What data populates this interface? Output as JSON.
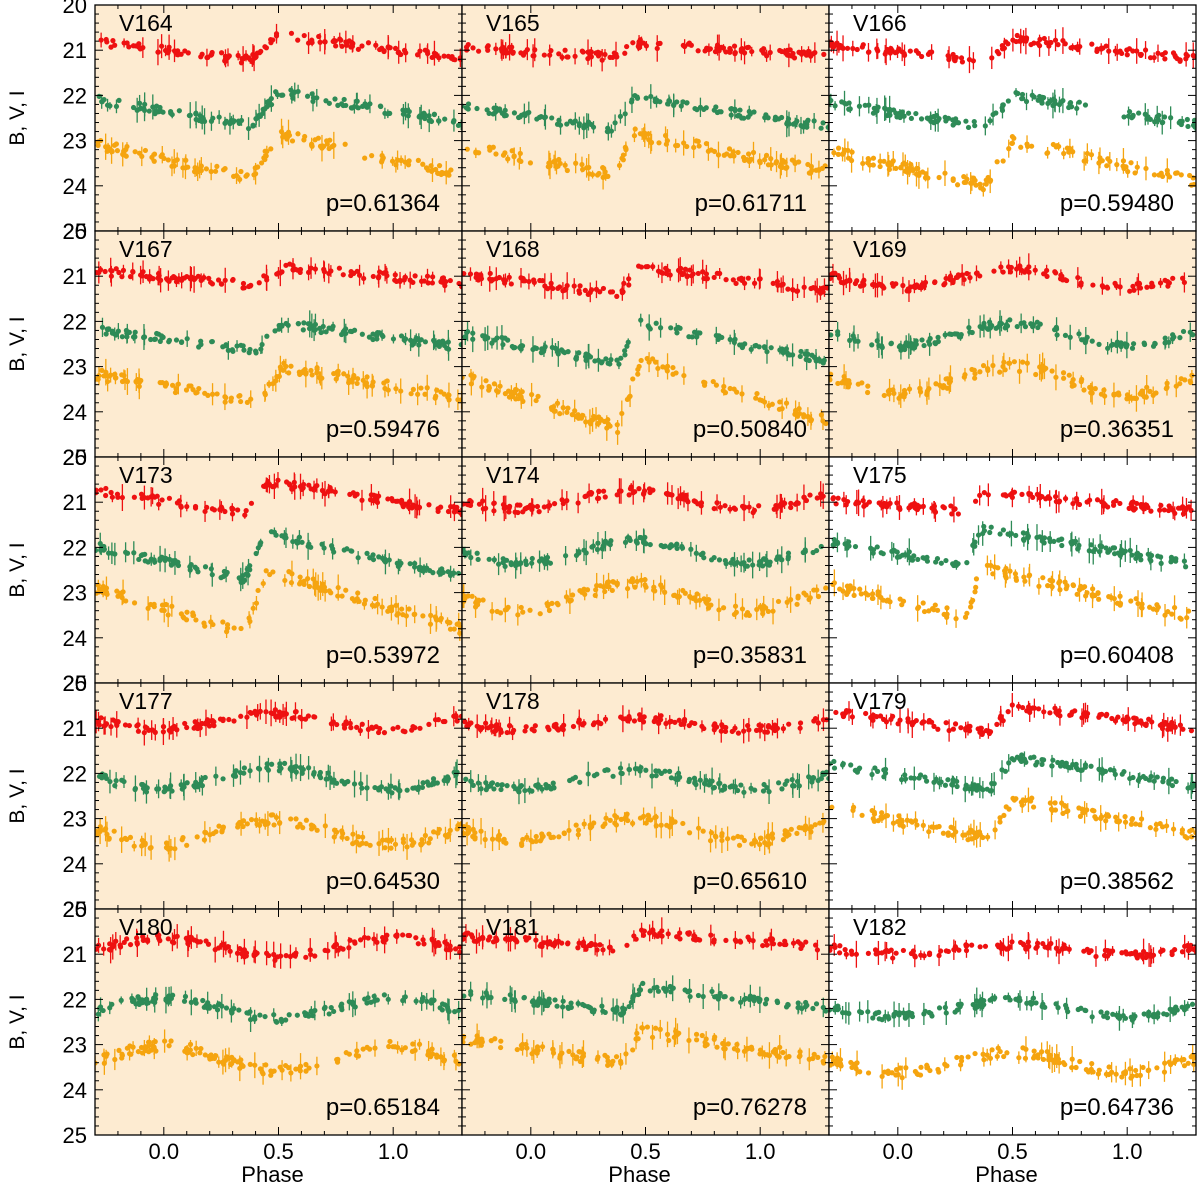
{
  "chart_data": {
    "type": "scatter",
    "description_axes": {
      "xlabel": "Phase",
      "ylabel": "B, V, I",
      "xlim": [
        -0.3,
        1.3
      ],
      "ylim": [
        25,
        20
      ],
      "xticks": [
        0.0,
        0.5,
        1.0
      ],
      "xtick_labels": [
        "0.0",
        "0.5",
        "1.0"
      ],
      "yticks": [
        20,
        21,
        22,
        23,
        24,
        25
      ],
      "ytick_labels": [
        "20",
        "21",
        "22",
        "23",
        "24",
        "25"
      ]
    },
    "series_legend": [
      {
        "band": "I",
        "color": "#ee1111"
      },
      {
        "band": "V",
        "color": "#2e8b57"
      },
      {
        "band": "B",
        "color": "#f5a40f"
      }
    ],
    "panels": [
      {
        "star": "V164",
        "period_label": "p=0.61364",
        "highlighted": true,
        "shape": "sharp",
        "rise": 0.38,
        "peak": 0.5,
        "mean": {
          "I": 20.95,
          "V": 22.3,
          "B": 23.35
        },
        "amp": {
          "I": 0.55,
          "V": 0.75,
          "B": 1.0
        }
      },
      {
        "star": "V165",
        "period_label": "p=0.61711",
        "highlighted": true,
        "shape": "sharp",
        "rise": 0.36,
        "peak": 0.45,
        "mean": {
          "I": 21.0,
          "V": 22.4,
          "B": 23.3
        },
        "amp": {
          "I": 0.3,
          "V": 0.7,
          "B": 0.9
        }
      },
      {
        "star": "V166",
        "period_label": "p=0.59480",
        "highlighted": false,
        "shape": "sharp",
        "rise": 0.38,
        "peak": 0.5,
        "mean": {
          "I": 21.0,
          "V": 22.35,
          "B": 23.5
        },
        "amp": {
          "I": 0.5,
          "V": 0.7,
          "B": 1.0
        }
      },
      {
        "star": "V167",
        "period_label": "p=0.59476",
        "highlighted": true,
        "shape": "sharp",
        "rise": 0.4,
        "peak": 0.52,
        "mean": {
          "I": 21.0,
          "V": 22.35,
          "B": 23.4
        },
        "amp": {
          "I": 0.4,
          "V": 0.6,
          "B": 0.8
        }
      },
      {
        "star": "V168",
        "period_label": "p=0.50840",
        "highlighted": true,
        "shape": "sharp",
        "rise": 0.38,
        "peak": 0.48,
        "mean": {
          "I": 21.1,
          "V": 22.5,
          "B": 23.6
        },
        "amp": {
          "I": 0.6,
          "V": 0.9,
          "B": 1.5
        }
      },
      {
        "star": "V169",
        "period_label": "p=0.36351",
        "highlighted": true,
        "shape": "sine",
        "rise": 0.4,
        "peak": 0.5,
        "mean": {
          "I": 21.05,
          "V": 22.3,
          "B": 23.3
        },
        "amp": {
          "I": 0.4,
          "V": 0.5,
          "B": 0.6
        }
      },
      {
        "star": "V173",
        "period_label": "p=0.53972",
        "highlighted": true,
        "shape": "sharp",
        "rise": 0.35,
        "peak": 0.45,
        "mean": {
          "I": 20.9,
          "V": 22.2,
          "B": 23.2
        },
        "amp": {
          "I": 0.7,
          "V": 1.0,
          "B": 1.4
        }
      },
      {
        "star": "V174",
        "period_label": "p=0.35831",
        "highlighted": true,
        "shape": "sine",
        "rise": 0.4,
        "peak": 0.45,
        "mean": {
          "I": 20.95,
          "V": 22.1,
          "B": 23.1
        },
        "amp": {
          "I": 0.4,
          "V": 0.5,
          "B": 0.6
        }
      },
      {
        "star": "V175",
        "period_label": "p=0.60408",
        "highlighted": false,
        "shape": "sharp",
        "rise": 0.3,
        "peak": 0.36,
        "mean": {
          "I": 21.0,
          "V": 22.0,
          "B": 23.0
        },
        "amp": {
          "I": 0.4,
          "V": 0.8,
          "B": 1.1
        }
      },
      {
        "star": "V177",
        "period_label": "p=0.64530",
        "highlighted": true,
        "shape": "sine",
        "rise": 0.4,
        "peak": 0.48,
        "mean": {
          "I": 20.85,
          "V": 22.1,
          "B": 23.3
        },
        "amp": {
          "I": 0.35,
          "V": 0.5,
          "B": 0.55
        }
      },
      {
        "star": "V178",
        "period_label": "p=0.65610",
        "highlighted": true,
        "shape": "sine",
        "rise": 0.4,
        "peak": 0.45,
        "mean": {
          "I": 20.9,
          "V": 22.15,
          "B": 23.25
        },
        "amp": {
          "I": 0.25,
          "V": 0.4,
          "B": 0.5
        }
      },
      {
        "star": "V179",
        "period_label": "p=0.38562",
        "highlighted": false,
        "shape": "sharp",
        "rise": 0.4,
        "peak": 0.5,
        "mean": {
          "I": 20.8,
          "V": 22.0,
          "B": 23.0
        },
        "amp": {
          "I": 0.55,
          "V": 0.7,
          "B": 0.9
        }
      },
      {
        "star": "V180",
        "period_label": "p=0.65184",
        "highlighted": true,
        "shape": "sine",
        "rise": 0.4,
        "peak": 0.0,
        "mean": {
          "I": 20.85,
          "V": 22.2,
          "B": 23.3
        },
        "amp": {
          "I": 0.4,
          "V": 0.45,
          "B": 0.55
        }
      },
      {
        "star": "V181",
        "period_label": "p=0.76278",
        "highlighted": true,
        "shape": "sharp",
        "rise": 0.4,
        "peak": 0.48,
        "mean": {
          "I": 20.7,
          "V": 22.0,
          "B": 23.05
        },
        "amp": {
          "I": 0.35,
          "V": 0.55,
          "B": 0.7
        }
      },
      {
        "star": "V182",
        "period_label": "p=0.64736",
        "highlighted": false,
        "shape": "sine",
        "rise": 0.4,
        "peak": 0.5,
        "mean": {
          "I": 20.9,
          "V": 22.2,
          "B": 23.4
        },
        "amp": {
          "I": 0.2,
          "V": 0.35,
          "B": 0.45
        }
      }
    ]
  }
}
